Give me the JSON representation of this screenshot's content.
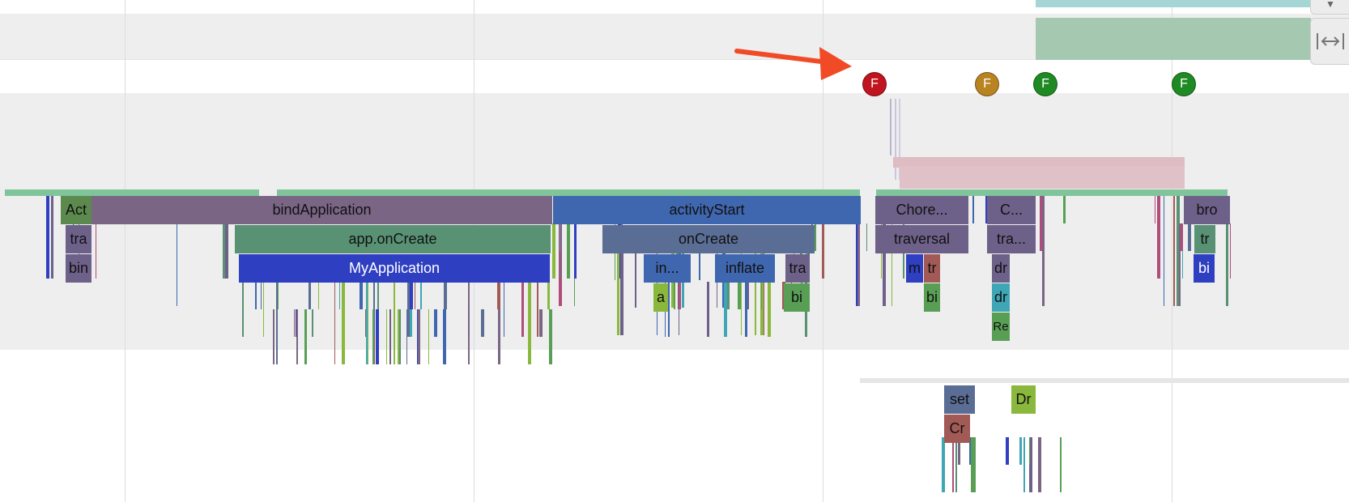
{
  "tracks": {
    "row0": [
      {
        "name": "Act",
        "color": "#5c8a4e"
      },
      {
        "name": "bindApplication",
        "color": "#7a6585"
      },
      {
        "name": "activityStart",
        "color": "#3f67b0"
      },
      {
        "name": "Chore...",
        "color": "#6e6189"
      },
      {
        "name": "C...",
        "color": "#6e6189"
      },
      {
        "name": "bro",
        "color": "#6e6189"
      }
    ],
    "row1": [
      {
        "name": "tra",
        "color": "#6e6189"
      },
      {
        "name": "app.onCreate",
        "color": "#589173"
      },
      {
        "name": "onCreate",
        "color": "#5a6d94"
      },
      {
        "name": "traversal",
        "color": "#6e6189"
      },
      {
        "name": "tra...",
        "color": "#6e6189"
      },
      {
        "name": "tr",
        "color": "#589173"
      }
    ],
    "row2": [
      {
        "name": "bin",
        "color": "#6e6189"
      },
      {
        "name": "MyApplication",
        "color": "#2f3fc2"
      },
      {
        "name": "in...",
        "color": "#3f67b0"
      },
      {
        "name": "inflate",
        "color": "#3f67b0"
      },
      {
        "name": "tra",
        "color": "#6e6189"
      },
      {
        "name": "m",
        "color": "#2f3fc2"
      },
      {
        "name": "tr",
        "color": "#a25a56"
      },
      {
        "name": "dr",
        "color": "#6e6189"
      },
      {
        "name": "bi",
        "color": "#2f3fc2"
      }
    ],
    "row3": [
      {
        "name": "a",
        "color": "#8ab83d"
      },
      {
        "name": "bi",
        "color": "#589f55"
      },
      {
        "name": "bi",
        "color": "#589f55"
      },
      {
        "name": "dr",
        "color": "#3fa6b5"
      }
    ],
    "row4": [
      {
        "name": "Re",
        "color": "#589f55"
      }
    ],
    "lower": [
      {
        "name": "set",
        "color": "#5a6d94"
      },
      {
        "name": "Dr",
        "color": "#8ab83d"
      },
      {
        "name": "Cr",
        "color": "#a25a56"
      }
    ]
  },
  "frames": [
    {
      "label": "F",
      "status": "janky",
      "color": "#c0141e"
    },
    {
      "label": "F",
      "status": "late",
      "color": "#b98322"
    },
    {
      "label": "F",
      "status": "ok",
      "color": "#1f8a23"
    },
    {
      "label": "F",
      "status": "ok",
      "color": "#1f8a23"
    }
  ],
  "controls": {
    "expand_icon": "chevron-down-icon",
    "resize_icon": "resize-horizontal-icon"
  },
  "colors": {
    "annotation_arrow": "#f04a26",
    "track_background": "#eeeeee",
    "counter_teal": "#a6d5d6",
    "counter_green": "#a5c9b0",
    "pink_slice": "#dfbcc3"
  }
}
